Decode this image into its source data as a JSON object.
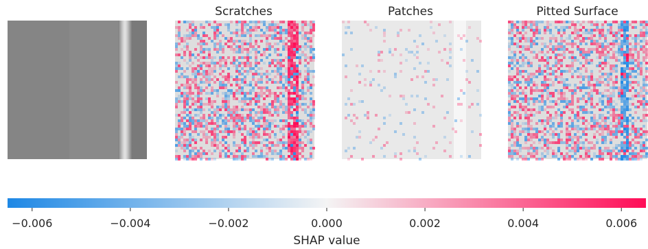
{
  "chart_data": {
    "type": "heatmap",
    "panels": [
      {
        "title": "",
        "kind": "image",
        "description": "grayscale steel surface image with a bright vertical stripe near the right"
      },
      {
        "title": "Scratches",
        "kind": "shap_overlay",
        "dominant": "mixed red/blue with strong red along vertical stripe"
      },
      {
        "title": "Patches",
        "kind": "shap_overlay",
        "dominant": "near-zero (mostly pale) attribution"
      },
      {
        "title": "Pitted Surface",
        "kind": "shap_overlay",
        "dominant": "mixed red/blue with strong blue along vertical stripe"
      }
    ],
    "colorbar": {
      "label": "SHAP value",
      "range": [
        -0.0065,
        0.0065
      ],
      "ticks": [
        -0.006,
        -0.004,
        -0.002,
        0.0,
        0.002,
        0.004,
        0.006
      ],
      "tick_labels": [
        "−0.006",
        "−0.004",
        "−0.002",
        "0.000",
        "0.002",
        "0.004",
        "0.006"
      ],
      "colormap": {
        "negative": "#1E88E5",
        "zero": "#F4F4F4",
        "positive": "#FF0D57"
      }
    }
  }
}
